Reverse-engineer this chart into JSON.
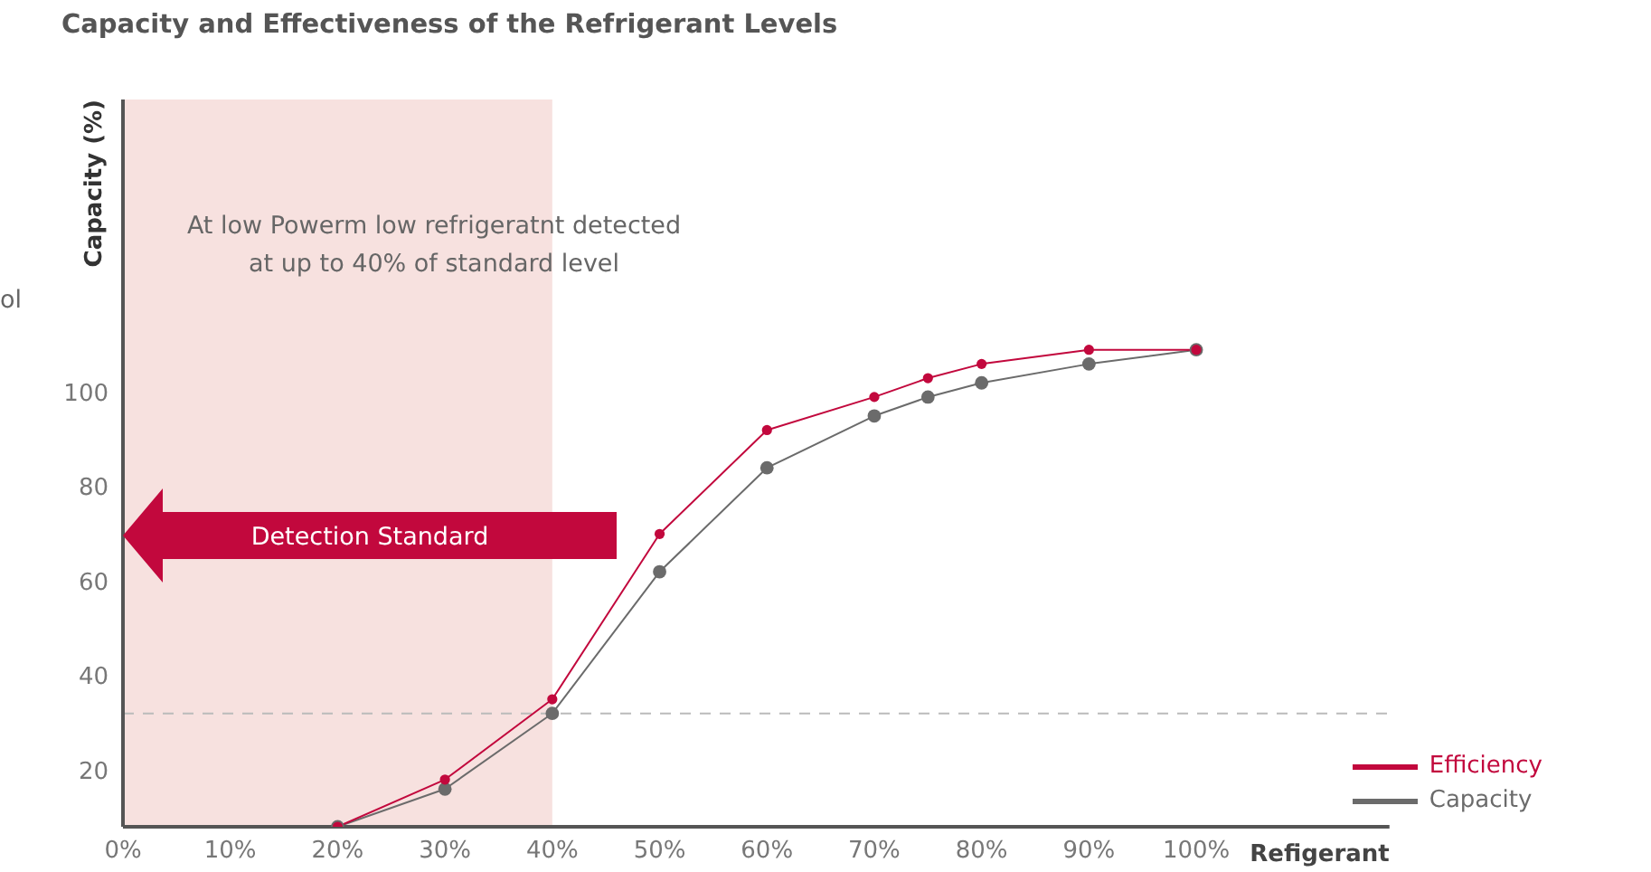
{
  "chart_data": {
    "type": "line",
    "title": "Capacity and Effectiveness of the Refrigerant Levels",
    "xlabel": "Refigerant",
    "ylabel": "Capacity (%)",
    "x": [
      20,
      30,
      40,
      50,
      60,
      70,
      75,
      80,
      90,
      100
    ],
    "series": [
      {
        "name": "Efficiency",
        "color": "#c2083d",
        "values": [
          8,
          18,
          35,
          70,
          92,
          99,
          103,
          106,
          109,
          109
        ]
      },
      {
        "name": "Capacity",
        "color": "#6b6b6b",
        "values": [
          8,
          16,
          32,
          62,
          84,
          95,
          99,
          102,
          106,
          109
        ]
      }
    ],
    "xlim": [
      0,
      118
    ],
    "xticks": [
      {
        "value": 0,
        "label": "0%"
      },
      {
        "value": 10,
        "label": "10%"
      },
      {
        "value": 20,
        "label": "20%"
      },
      {
        "value": 30,
        "label": "30%"
      },
      {
        "value": 40,
        "label": "40%"
      },
      {
        "value": 50,
        "label": "50%"
      },
      {
        "value": 60,
        "label": "60%"
      },
      {
        "value": 70,
        "label": "70%"
      },
      {
        "value": 80,
        "label": "80%"
      },
      {
        "value": 90,
        "label": "90%"
      },
      {
        "value": 100,
        "label": "100%"
      }
    ],
    "ylim": [
      8,
      162
    ],
    "yticks": [
      20,
      40,
      60,
      80,
      100
    ],
    "ref_lines": [
      {
        "axis": "y",
        "value": 32,
        "color": "#bbbbbb",
        "line_style": "dashed"
      }
    ],
    "bands": [
      {
        "axis": "x",
        "from": 0,
        "to": 40,
        "color": "#f7e1df"
      }
    ],
    "annotations": [
      "At low Powerm low refrigeratnt detected\nat up to 40% of standard level",
      "Detection Standard",
      "ol"
    ],
    "legend": "bottom right",
    "marker": "circle",
    "line_style": "solid",
    "grid": false
  }
}
